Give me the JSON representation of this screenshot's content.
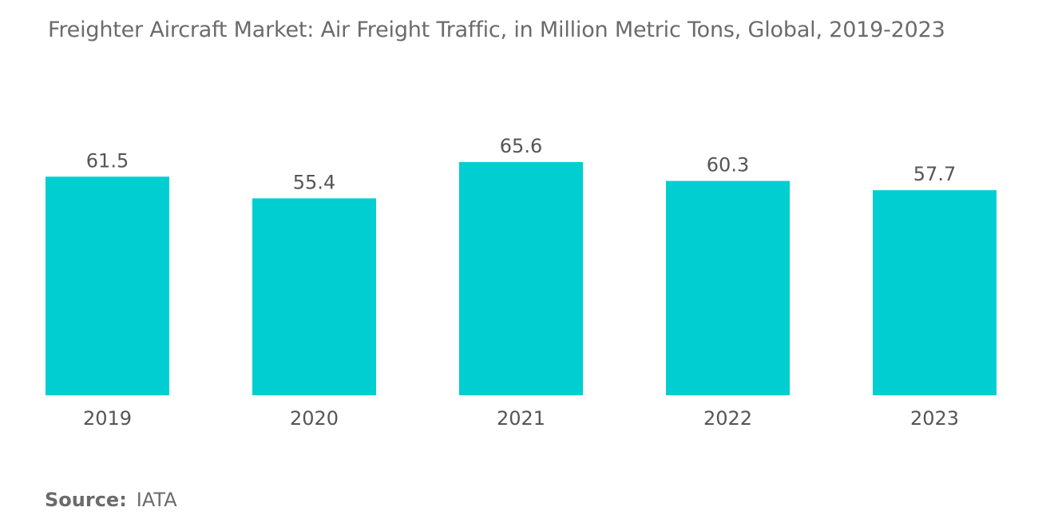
{
  "title": "Freighter Aircraft Market: Air Freight Traffic, in Million Metric Tons, Global, 2019-2023",
  "source": {
    "label": "Source:",
    "value": "IATA"
  },
  "colors": {
    "bar": "#00CED1",
    "text": "#555555",
    "title": "#6b6b6b"
  },
  "chart_data": {
    "type": "bar",
    "title": "Freighter Aircraft Market: Air Freight Traffic, in Million Metric Tons, Global, 2019-2023",
    "categories": [
      "2019",
      "2020",
      "2021",
      "2022",
      "2023"
    ],
    "values": [
      61.5,
      55.4,
      65.6,
      60.3,
      57.7
    ],
    "value_labels": [
      "61.5",
      "55.4",
      "65.6",
      "60.3",
      "57.7"
    ],
    "xlabel": "",
    "ylabel": "",
    "ylim": [
      0,
      65.6
    ],
    "grid": false,
    "legend": "none"
  }
}
